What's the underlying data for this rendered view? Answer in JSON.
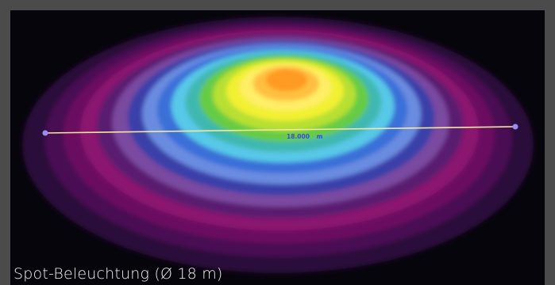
{
  "caption": "Spot-Beleuchtung (Ø 18 m)",
  "measurement": {
    "value": "18.000",
    "unit": "m",
    "line_color": "#f5e6a0",
    "endpoint_color": "#9a8cf0",
    "label_color": "#3b48e8"
  },
  "colors": {
    "background": "#07050c",
    "frame": "#4b4b4b",
    "caption": "#f2f2f2"
  },
  "isolux_rings": [
    "#2a0a3a",
    "#4a0d52",
    "#6b1060",
    "#8a1870",
    "#5a1e70",
    "#7a4aa0",
    "#3a3fa8",
    "#6a8ce0",
    "#3a6fd8",
    "#58c8e8",
    "#40b8b0",
    "#66cc44",
    "#b8e030",
    "#f2f030",
    "#ffee66",
    "#ffc040",
    "#ff9a20"
  ]
}
